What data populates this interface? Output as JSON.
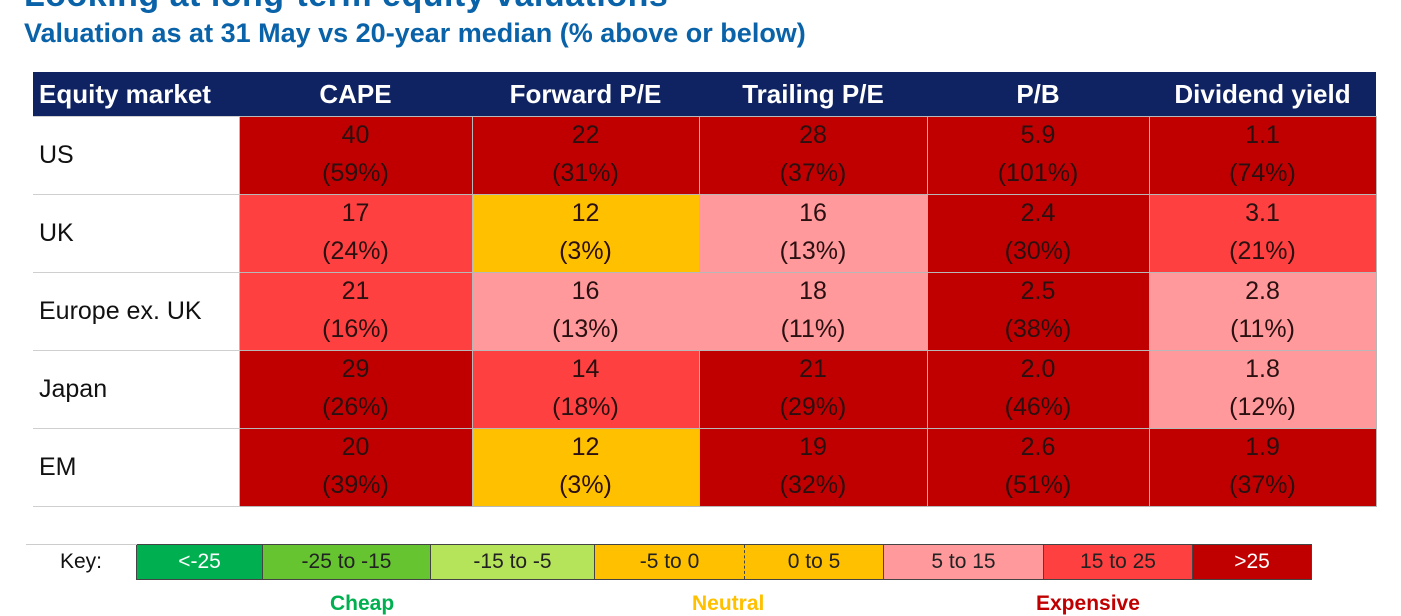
{
  "header": {
    "clipped_title": "Looking at long-term equity valuations",
    "subtitle": "Valuation as at 31 May vs 20-year median (% above or below)"
  },
  "colors": {
    "header_bg": "#0f2262",
    "title_blue": "#0a63a8",
    "lt_-25": "#00b050",
    "-25_to_-15": "#66c431",
    "-15_to_-5": "#b5e35a",
    "-5_to_0": "#ffc000",
    "0_to_5": "#ffc000",
    "5_to_15": "#ff999c",
    "15_to_25": "#ff4040",
    "gt_25": "#c00000"
  },
  "chart_data": {
    "type": "table",
    "columns": [
      "Equity market",
      "CAPE",
      "Forward P/E",
      "Trailing P/E",
      "P/B",
      "Dividend yield"
    ],
    "rows": [
      {
        "market": "US",
        "cells": [
          {
            "value": "40",
            "pct": "(59%)",
            "band": "gt_25"
          },
          {
            "value": "22",
            "pct": "(31%)",
            "band": "gt_25"
          },
          {
            "value": "28",
            "pct": "(37%)",
            "band": "gt_25"
          },
          {
            "value": "5.9",
            "pct": "(101%)",
            "band": "gt_25"
          },
          {
            "value": "1.1",
            "pct": "(74%)",
            "band": "gt_25"
          }
        ]
      },
      {
        "market": "UK",
        "cells": [
          {
            "value": "17",
            "pct": "(24%)",
            "band": "15_to_25"
          },
          {
            "value": "12",
            "pct": "(3%)",
            "band": "0_to_5"
          },
          {
            "value": "16",
            "pct": "(13%)",
            "band": "5_to_15"
          },
          {
            "value": "2.4",
            "pct": "(30%)",
            "band": "gt_25"
          },
          {
            "value": "3.1",
            "pct": "(21%)",
            "band": "15_to_25"
          }
        ]
      },
      {
        "market": "Europe ex. UK",
        "cells": [
          {
            "value": "21",
            "pct": "(16%)",
            "band": "15_to_25"
          },
          {
            "value": "16",
            "pct": "(13%)",
            "band": "5_to_15"
          },
          {
            "value": "18",
            "pct": "(11%)",
            "band": "5_to_15"
          },
          {
            "value": "2.5",
            "pct": "(38%)",
            "band": "gt_25"
          },
          {
            "value": "2.8",
            "pct": "(11%)",
            "band": "5_to_15"
          }
        ]
      },
      {
        "market": "Japan",
        "cells": [
          {
            "value": "29",
            "pct": "(26%)",
            "band": "gt_25"
          },
          {
            "value": "14",
            "pct": "(18%)",
            "band": "15_to_25"
          },
          {
            "value": "21",
            "pct": "(29%)",
            "band": "gt_25"
          },
          {
            "value": "2.0",
            "pct": "(46%)",
            "band": "gt_25"
          },
          {
            "value": "1.8",
            "pct": "(12%)",
            "band": "5_to_15"
          }
        ]
      },
      {
        "market": "EM",
        "cells": [
          {
            "value": "20",
            "pct": "(39%)",
            "band": "gt_25"
          },
          {
            "value": "12",
            "pct": "(3%)",
            "band": "0_to_5"
          },
          {
            "value": "19",
            "pct": "(32%)",
            "band": "gt_25"
          },
          {
            "value": "2.6",
            "pct": "(51%)",
            "band": "gt_25"
          },
          {
            "value": "1.9",
            "pct": "(37%)",
            "band": "gt_25"
          }
        ]
      }
    ]
  },
  "key": {
    "label": "Key:",
    "items": [
      {
        "text": "<-25",
        "band": "lt_-25",
        "text_color": "#ffffff"
      },
      {
        "text": "-25 to -15",
        "band": "-25_to_-15",
        "text_color": "#222222"
      },
      {
        "text": "-15 to -5",
        "band": "-15_to_-5",
        "text_color": "#222222"
      },
      {
        "text": "-5 to 0",
        "band": "-5_to_0",
        "text_color": "#222222"
      },
      {
        "text": "0 to 5",
        "band": "0_to_5",
        "text_color": "#222222"
      },
      {
        "text": "5 to 15",
        "band": "5_to_15",
        "text_color": "#222222"
      },
      {
        "text": "15 to 25",
        "band": "15_to_25",
        "text_color": "#222222"
      },
      {
        "text": ">25",
        "band": "gt_25",
        "text_color": "#ffffff"
      }
    ],
    "groups": [
      {
        "text": "Cheap",
        "color": "#00b050"
      },
      {
        "text": "Neutral",
        "color": "#ffc000"
      },
      {
        "text": "Expensive",
        "color": "#c00000"
      }
    ]
  }
}
